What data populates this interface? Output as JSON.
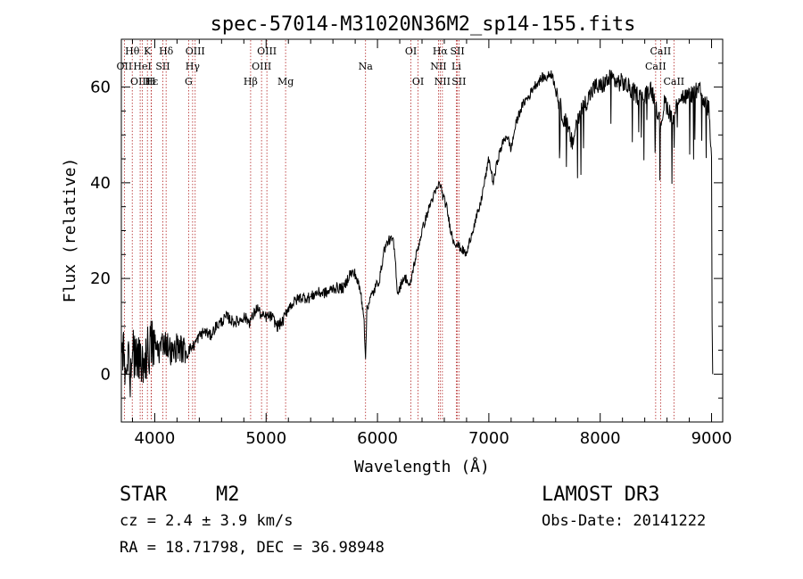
{
  "chart_data": {
    "type": "line",
    "title": "spec-57014-M31020N36M2_sp14-155.fits",
    "xlabel": "Wavelength (Å)",
    "ylabel": "Flux (relative)",
    "xlim": [
      3700,
      9100
    ],
    "ylim": [
      -10,
      70
    ],
    "xticks": [
      4000,
      5000,
      6000,
      7000,
      8000,
      9000
    ],
    "yticks": [
      0,
      20,
      40,
      60
    ],
    "colors": {
      "spectrum": "#000000",
      "line_marker": "#b22222",
      "axis": "#000000"
    },
    "spectrum_anchors": [
      [
        3705,
        4
      ],
      [
        3720,
        8
      ],
      [
        3740,
        0
      ],
      [
        3760,
        6
      ],
      [
        3780,
        -3
      ],
      [
        3800,
        7
      ],
      [
        3830,
        2
      ],
      [
        3860,
        4
      ],
      [
        3900,
        3
      ],
      [
        3940,
        5
      ],
      [
        3970,
        6
      ],
      [
        4000,
        6
      ],
      [
        4040,
        5
      ],
      [
        4080,
        7
      ],
      [
        4120,
        6
      ],
      [
        4160,
        4
      ],
      [
        4200,
        6
      ],
      [
        4250,
        5
      ],
      [
        4300,
        5
      ],
      [
        4350,
        6
      ],
      [
        4400,
        8
      ],
      [
        4450,
        9
      ],
      [
        4500,
        8
      ],
      [
        4550,
        10
      ],
      [
        4600,
        11
      ],
      [
        4650,
        12
      ],
      [
        4700,
        11
      ],
      [
        4750,
        11
      ],
      [
        4800,
        12
      ],
      [
        4850,
        11
      ],
      [
        4880,
        12
      ],
      [
        4920,
        14
      ],
      [
        4960,
        12
      ],
      [
        5000,
        12
      ],
      [
        5050,
        12
      ],
      [
        5100,
        10
      ],
      [
        5150,
        11
      ],
      [
        5200,
        14
      ],
      [
        5250,
        15
      ],
      [
        5300,
        16
      ],
      [
        5350,
        16
      ],
      [
        5400,
        16
      ],
      [
        5450,
        17
      ],
      [
        5500,
        17
      ],
      [
        5550,
        17
      ],
      [
        5600,
        18
      ],
      [
        5650,
        18
      ],
      [
        5700,
        18
      ],
      [
        5750,
        21
      ],
      [
        5800,
        21
      ],
      [
        5850,
        17
      ],
      [
        5880,
        12
      ],
      [
        5893,
        2
      ],
      [
        5905,
        14
      ],
      [
        5940,
        16
      ],
      [
        5980,
        18
      ],
      [
        6020,
        20
      ],
      [
        6060,
        26
      ],
      [
        6100,
        28
      ],
      [
        6140,
        28
      ],
      [
        6160,
        24
      ],
      [
        6180,
        17
      ],
      [
        6200,
        18
      ],
      [
        6230,
        20
      ],
      [
        6260,
        20
      ],
      [
        6290,
        18
      ],
      [
        6320,
        22
      ],
      [
        6360,
        26
      ],
      [
        6400,
        30
      ],
      [
        6440,
        33
      ],
      [
        6480,
        36
      ],
      [
        6520,
        38
      ],
      [
        6560,
        40
      ],
      [
        6590,
        37
      ],
      [
        6620,
        35
      ],
      [
        6650,
        31
      ],
      [
        6680,
        28
      ],
      [
        6720,
        27
      ],
      [
        6760,
        26
      ],
      [
        6800,
        25
      ],
      [
        6840,
        29
      ],
      [
        6880,
        32
      ],
      [
        6920,
        35
      ],
      [
        6960,
        40
      ],
      [
        7000,
        45
      ],
      [
        7040,
        40
      ],
      [
        7080,
        45
      ],
      [
        7120,
        48
      ],
      [
        7160,
        50
      ],
      [
        7200,
        47
      ],
      [
        7240,
        52
      ],
      [
        7280,
        55
      ],
      [
        7320,
        57
      ],
      [
        7360,
        58
      ],
      [
        7400,
        60
      ],
      [
        7440,
        61
      ],
      [
        7480,
        62
      ],
      [
        7520,
        62
      ],
      [
        7560,
        63
      ],
      [
        7600,
        60
      ],
      [
        7650,
        55
      ],
      [
        7700,
        52
      ],
      [
        7750,
        48
      ],
      [
        7800,
        54
      ],
      [
        7850,
        56
      ],
      [
        7900,
        58
      ],
      [
        7950,
        60
      ],
      [
        8000,
        60
      ],
      [
        8050,
        61
      ],
      [
        8100,
        62
      ],
      [
        8150,
        61
      ],
      [
        8200,
        61
      ],
      [
        8250,
        60
      ],
      [
        8300,
        59
      ],
      [
        8350,
        58
      ],
      [
        8400,
        58
      ],
      [
        8450,
        60
      ],
      [
        8500,
        57
      ],
      [
        8540,
        52
      ],
      [
        8580,
        57
      ],
      [
        8620,
        55
      ],
      [
        8660,
        53
      ],
      [
        8700,
        58
      ],
      [
        8750,
        58
      ],
      [
        8800,
        58
      ],
      [
        8850,
        59
      ],
      [
        8900,
        59
      ],
      [
        8940,
        57
      ],
      [
        8980,
        55
      ],
      [
        9000,
        44
      ],
      [
        9005,
        12
      ],
      [
        9010,
        0
      ]
    ],
    "emission_lines": [
      {
        "label": "Hθ",
        "wavelength": 3798,
        "row": 0
      },
      {
        "label": "OII",
        "wavelength": 3727,
        "row": 1
      },
      {
        "label": "OIII",
        "wavelength": 3869,
        "row": 2
      },
      {
        "label": "K",
        "wavelength": 3934,
        "row": 0
      },
      {
        "label": "HeI",
        "wavelength": 3889,
        "row": 1
      },
      {
        "label": "Hε",
        "wavelength": 3970,
        "row": 2
      },
      {
        "label": "H",
        "wavelength": 3968,
        "row": 2
      },
      {
        "label": "Hδ",
        "wavelength": 4102,
        "row": 0
      },
      {
        "label": "SII",
        "wavelength": 4072,
        "row": 1
      },
      {
        "label": "OIII",
        "wavelength": 4363,
        "row": 0
      },
      {
        "label": "Hγ",
        "wavelength": 4340,
        "row": 1
      },
      {
        "label": "G",
        "wavelength": 4304,
        "row": 2
      },
      {
        "label": "OIII",
        "wavelength": 5007,
        "row": 0
      },
      {
        "label": "OIII",
        "wavelength": 4959,
        "row": 1
      },
      {
        "label": "Hβ",
        "wavelength": 4861,
        "row": 2
      },
      {
        "label": "Mg",
        "wavelength": 5175,
        "row": 2
      },
      {
        "label": "Na",
        "wavelength": 5893,
        "row": 1
      },
      {
        "label": "OI",
        "wavelength": 6300,
        "row": 0
      },
      {
        "label": "OI",
        "wavelength": 6364,
        "row": 2
      },
      {
        "label": "Hα",
        "wavelength": 6563,
        "row": 0
      },
      {
        "label": "NII",
        "wavelength": 6548,
        "row": 1
      },
      {
        "label": "NII",
        "wavelength": 6583,
        "row": 2
      },
      {
        "label": "SII",
        "wavelength": 6717,
        "row": 0
      },
      {
        "label": "Li",
        "wavelength": 6708,
        "row": 1
      },
      {
        "label": "SII",
        "wavelength": 6731,
        "row": 2
      },
      {
        "label": "CaII",
        "wavelength": 8542,
        "row": 0
      },
      {
        "label": "CaII",
        "wavelength": 8498,
        "row": 1
      },
      {
        "label": "CaII",
        "wavelength": 8662,
        "row": 2
      }
    ]
  },
  "info": {
    "class": "STAR",
    "subclass": "M2",
    "survey": "LAMOST DR3",
    "cz": "cz = 2.4 ± 3.9 km/s",
    "obs_date": "Obs-Date: 20141222",
    "coords": "RA =  18.71798, DEC =  36.98948"
  }
}
